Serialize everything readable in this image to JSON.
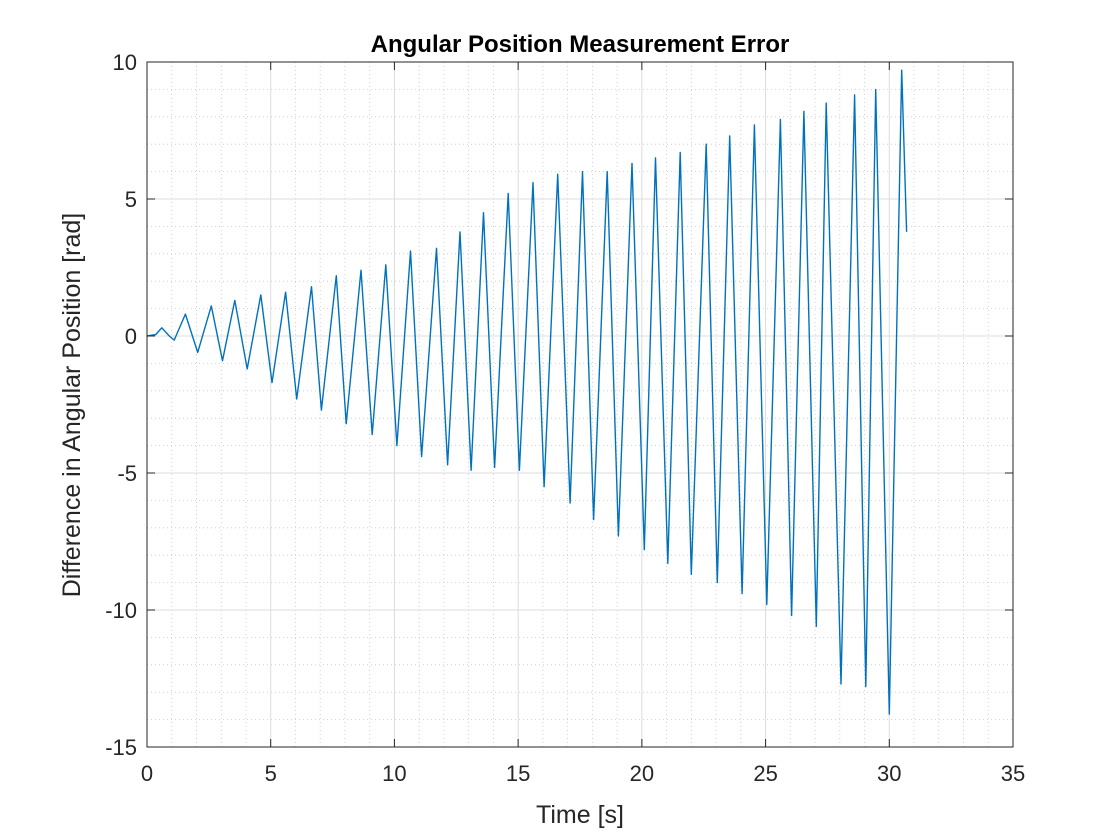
{
  "chart_data": {
    "type": "line",
    "title": "Angular Position Measurement Error",
    "xlabel": "Time [s]",
    "ylabel": "Difference in Angular Position [rad]",
    "xlim": [
      0,
      35
    ],
    "ylim": [
      -15,
      10
    ],
    "xticks": [
      0,
      5,
      10,
      15,
      20,
      25,
      30,
      35
    ],
    "yticks": [
      -15,
      -10,
      -5,
      0,
      5,
      10
    ],
    "grid": true,
    "minor_grid": true,
    "series": [
      {
        "color": "#0072BD",
        "x": [
          0.0,
          0.35,
          0.6,
          0.9,
          1.1,
          1.55,
          2.05,
          2.6,
          3.05,
          3.55,
          4.05,
          4.6,
          5.05,
          5.6,
          6.05,
          6.65,
          7.05,
          7.65,
          8.05,
          8.65,
          9.1,
          9.65,
          10.1,
          10.65,
          11.1,
          11.7,
          12.15,
          12.65,
          13.1,
          13.6,
          14.05,
          14.6,
          15.05,
          15.6,
          16.05,
          16.6,
          17.1,
          17.6,
          18.05,
          18.6,
          19.05,
          19.6,
          20.1,
          20.55,
          21.05,
          21.55,
          22.0,
          22.6,
          23.05,
          23.55,
          24.05,
          24.55,
          25.05,
          25.6,
          26.05,
          26.55,
          27.05,
          27.45,
          28.05,
          28.6,
          29.05,
          29.45,
          30.0,
          30.5,
          30.7
        ],
        "y": [
          0.0,
          0.05,
          0.3,
          0.0,
          -0.15,
          0.8,
          -0.6,
          1.1,
          -0.9,
          1.3,
          -1.2,
          1.5,
          -1.7,
          1.6,
          -2.3,
          1.8,
          -2.7,
          2.2,
          -3.2,
          2.4,
          -3.6,
          2.6,
          -4.0,
          3.1,
          -4.4,
          3.2,
          -4.7,
          3.8,
          -4.9,
          4.5,
          -4.8,
          5.2,
          -4.9,
          5.6,
          -5.5,
          5.9,
          -6.1,
          6.0,
          -6.7,
          6.0,
          -7.3,
          6.3,
          -7.8,
          6.5,
          -8.3,
          6.7,
          -8.7,
          7.0,
          -9.0,
          7.3,
          -9.4,
          7.7,
          -9.8,
          7.9,
          -10.2,
          8.2,
          -10.6,
          8.5,
          -12.7,
          8.8,
          -12.8,
          9.0,
          -13.8,
          9.7,
          3.8
        ]
      }
    ]
  }
}
